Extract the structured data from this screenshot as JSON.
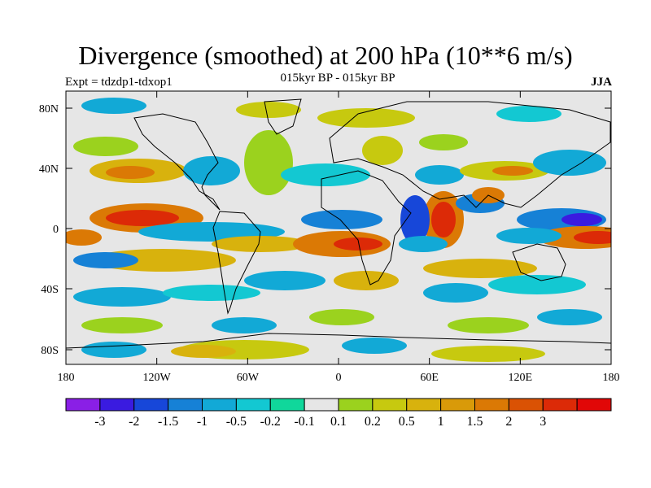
{
  "figure": {
    "title": "Divergence (smoothed) at 200 hPa (10**6 m/s)",
    "left_label": "Expt = tdzdp1-tdxop1",
    "center_label": "015kyr BP - 015kyr BP",
    "right_label": "JJA"
  },
  "map": {
    "lat_ticks": [
      "80N",
      "40N",
      "0",
      "40S",
      "80S"
    ],
    "lon_ticks": [
      "180",
      "120W",
      "60W",
      "0",
      "60E",
      "120E",
      "180"
    ],
    "background_color": "#e6e6e6"
  },
  "colorbar": {
    "colors": [
      "#8a1fe6",
      "#3a1be0",
      "#1747d9",
      "#1681d6",
      "#12a9d6",
      "#13c8d2",
      "#10d79b",
      "#e6e6e6",
      "#9bd21e",
      "#c7c90f",
      "#d8b20d",
      "#d99a09",
      "#db7905",
      "#da5204",
      "#dc2a07",
      "#e10707"
    ],
    "labels": [
      "-3",
      "-2",
      "-1.5",
      "-1",
      "-0.5",
      "-0.2",
      "-0.1",
      "0.1",
      "0.2",
      "0.5",
      "1",
      "1.5",
      "2",
      "3"
    ]
  }
}
